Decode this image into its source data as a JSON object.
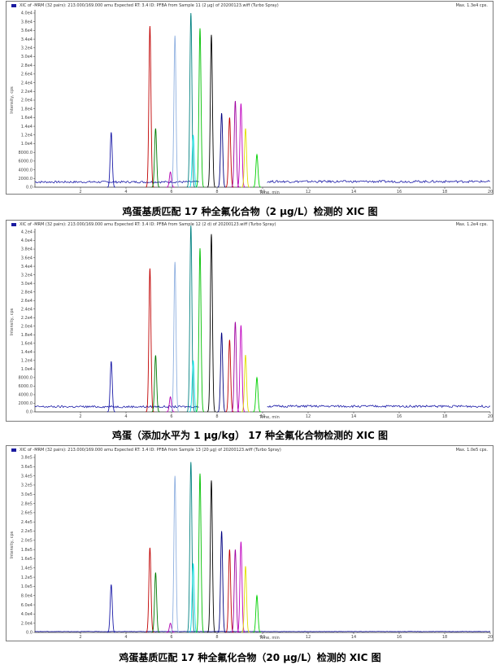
{
  "panels": [
    {
      "header_text": "XIC of -MRM (32 pairs): 213.000/169.000 amu Expected RT: 3.4 ID: PFBA from Sample 11 (2 μg) of 20200123.wiff (Turbo Spray)",
      "max_text": "Max. 1.3e4 cps.",
      "caption": "鸡蛋基质匹配 17 种全氟化合物（2 μg/L）检测的 XIC 图",
      "ylabel": "Intensity, cps",
      "xlabel": "Time, min",
      "y_ticks": [
        "4.0e4",
        "3.8e4",
        "3.6e4",
        "3.4e4",
        "3.2e4",
        "3.0e4",
        "2.8e4",
        "2.6e4",
        "2.4e4",
        "2.2e4",
        "2.0e4",
        "1.8e4",
        "1.6e4",
        "1.4e4",
        "1.2e4",
        "1.0e4",
        "8000.0",
        "6000.0",
        "4000.0",
        "2000.0",
        "0.0"
      ],
      "x_ticks": [
        "2",
        "4",
        "6",
        "8",
        "10",
        "12",
        "14",
        "16",
        "18",
        "20"
      ]
    },
    {
      "header_text": "XIC of -MRM (32 pairs): 213.000/169.000 amu Expected RT: 3.4 ID: PFBA from Sample 12 (2 d) of 20200123.wiff (Turbo Spray)",
      "max_text": "Max. 1.2e4 cps.",
      "caption": "鸡蛋（添加水平为 1 μg/kg） 17 种全氟化合物检测的 XIC 图",
      "ylabel": "Intensity, cps",
      "xlabel": "Time, min",
      "y_ticks": [
        "4.2e4",
        "4.0e4",
        "3.8e4",
        "3.6e4",
        "3.4e4",
        "3.2e4",
        "3.0e4",
        "2.8e4",
        "2.6e4",
        "2.4e4",
        "2.2e4",
        "2.0e4",
        "1.8e4",
        "1.6e4",
        "1.4e4",
        "1.2e4",
        "1.0e4",
        "8000.0",
        "6000.0",
        "4000.0",
        "2000.0",
        "0.0"
      ],
      "x_ticks": [
        "2",
        "4",
        "6",
        "8",
        "10",
        "12",
        "14",
        "16",
        "18",
        "20"
      ]
    },
    {
      "header_text": "XIC of -MRM (32 pairs): 213.000/169.000 amu Expected RT: 3.4 ID: PFBA from Sample 13 (20 μg) of 20200123.wiff (Turbo Spray)",
      "max_text": "Max. 1.0e5 cps.",
      "caption": "鸡蛋基质匹配 17 种全氟化合物（20 μg/L）检测的 XIC 图",
      "ylabel": "Intensity, cps",
      "xlabel": "Time, min",
      "y_ticks": [
        "3.8e5",
        "3.6e5",
        "3.4e5",
        "3.2e5",
        "3.0e5",
        "2.8e5",
        "2.6e5",
        "2.4e5",
        "2.2e5",
        "2.0e5",
        "1.8e5",
        "1.6e5",
        "1.4e5",
        "1.2e5",
        "1.0e5",
        "8.0e4",
        "6.0e4",
        "4.0e4",
        "2.0e4",
        "0.0"
      ],
      "x_ticks": [
        "2",
        "4",
        "6",
        "8",
        "10",
        "12",
        "14",
        "16",
        "18",
        "20"
      ]
    }
  ],
  "chart_data": [
    {
      "type": "line",
      "title": "鸡蛋基质匹配 17 种全氟化合物（2 μg/L）检测的 XIC 图",
      "xlabel": "Time, min",
      "ylabel": "Intensity, cps",
      "xlim": [
        0,
        20
      ],
      "ylim": [
        0,
        40000
      ],
      "baseline": [
        {
          "from": 0,
          "to": 7.2,
          "level": 1200
        },
        {
          "from": 10.2,
          "to": 20,
          "level": 1300
        }
      ],
      "peaks": [
        {
          "rt": 3.35,
          "height": 12600,
          "color": "#1c1ca8"
        },
        {
          "rt": 5.05,
          "height": 37000,
          "color": "#c00000"
        },
        {
          "rt": 5.3,
          "height": 13500,
          "color": "#007a00"
        },
        {
          "rt": 5.95,
          "height": 3500,
          "color": "#b000b0"
        },
        {
          "rt": 6.15,
          "height": 34800,
          "color": "#8fb0e0"
        },
        {
          "rt": 6.85,
          "height": 40000,
          "color": "#008080"
        },
        {
          "rt": 6.95,
          "height": 12000,
          "color": "#00e0e0"
        },
        {
          "rt": 7.25,
          "height": 36500,
          "color": "#00c000"
        },
        {
          "rt": 7.75,
          "height": 35000,
          "color": "#000000"
        },
        {
          "rt": 8.2,
          "height": 17000,
          "color": "#000080"
        },
        {
          "rt": 8.55,
          "height": 16000,
          "color": "#c00000"
        },
        {
          "rt": 8.8,
          "height": 19800,
          "color": "#a000a0"
        },
        {
          "rt": 9.05,
          "height": 19200,
          "color": "#c000c0"
        },
        {
          "rt": 9.25,
          "height": 13500,
          "color": "#e0e000"
        },
        {
          "rt": 9.75,
          "height": 7500,
          "color": "#00d000"
        }
      ]
    },
    {
      "type": "line",
      "title": "鸡蛋（添加水平为 1 μg/kg） 17 种全氟化合物检测的 XIC 图",
      "xlabel": "Time, min",
      "ylabel": "Intensity, cps",
      "xlim": [
        0,
        20
      ],
      "ylim": [
        0,
        42000
      ],
      "baseline": [
        {
          "from": 0,
          "to": 7.2,
          "level": 1200
        },
        {
          "from": 10.2,
          "to": 20,
          "level": 1300
        }
      ],
      "peaks": [
        {
          "rt": 3.35,
          "height": 11800,
          "color": "#1c1ca8"
        },
        {
          "rt": 5.05,
          "height": 33500,
          "color": "#c00000"
        },
        {
          "rt": 5.3,
          "height": 13200,
          "color": "#007a00"
        },
        {
          "rt": 5.95,
          "height": 3500,
          "color": "#b000b0"
        },
        {
          "rt": 6.15,
          "height": 35000,
          "color": "#8fb0e0"
        },
        {
          "rt": 6.85,
          "height": 43500,
          "color": "#008080"
        },
        {
          "rt": 6.95,
          "height": 12000,
          "color": "#00e0e0"
        },
        {
          "rt": 7.25,
          "height": 38200,
          "color": "#00c000"
        },
        {
          "rt": 7.75,
          "height": 41500,
          "color": "#000000"
        },
        {
          "rt": 8.2,
          "height": 18500,
          "color": "#000080"
        },
        {
          "rt": 8.55,
          "height": 16800,
          "color": "#c00000"
        },
        {
          "rt": 8.8,
          "height": 21000,
          "color": "#a000a0"
        },
        {
          "rt": 9.05,
          "height": 20200,
          "color": "#c000c0"
        },
        {
          "rt": 9.25,
          "height": 13300,
          "color": "#e0e000"
        },
        {
          "rt": 9.75,
          "height": 8000,
          "color": "#00d000"
        }
      ]
    },
    {
      "type": "line",
      "title": "鸡蛋基质匹配 17 种全氟化合物（20 μg/L）检测的 XIC 图",
      "xlabel": "Time, min",
      "ylabel": "Intensity, cps",
      "xlim": [
        0,
        20
      ],
      "ylim": [
        0,
        380000
      ],
      "baseline": [
        {
          "from": 0,
          "to": 20,
          "level": 2000
        }
      ],
      "peaks": [
        {
          "rt": 3.35,
          "height": 104000,
          "color": "#1c1ca8"
        },
        {
          "rt": 5.05,
          "height": 184000,
          "color": "#c00000"
        },
        {
          "rt": 5.3,
          "height": 130000,
          "color": "#007a00"
        },
        {
          "rt": 5.95,
          "height": 20000,
          "color": "#b000b0"
        },
        {
          "rt": 6.15,
          "height": 340000,
          "color": "#8fb0e0"
        },
        {
          "rt": 6.85,
          "height": 370000,
          "color": "#008080"
        },
        {
          "rt": 6.95,
          "height": 150000,
          "color": "#00e0e0"
        },
        {
          "rt": 7.25,
          "height": 345000,
          "color": "#00c000"
        },
        {
          "rt": 7.75,
          "height": 330000,
          "color": "#000000"
        },
        {
          "rt": 8.2,
          "height": 220000,
          "color": "#000080"
        },
        {
          "rt": 8.55,
          "height": 180000,
          "color": "#c00000"
        },
        {
          "rt": 8.8,
          "height": 180000,
          "color": "#a000a0"
        },
        {
          "rt": 9.05,
          "height": 197000,
          "color": "#c000c0"
        },
        {
          "rt": 9.25,
          "height": 144000,
          "color": "#e0e000"
        },
        {
          "rt": 9.75,
          "height": 80000,
          "color": "#00d000"
        }
      ]
    }
  ]
}
